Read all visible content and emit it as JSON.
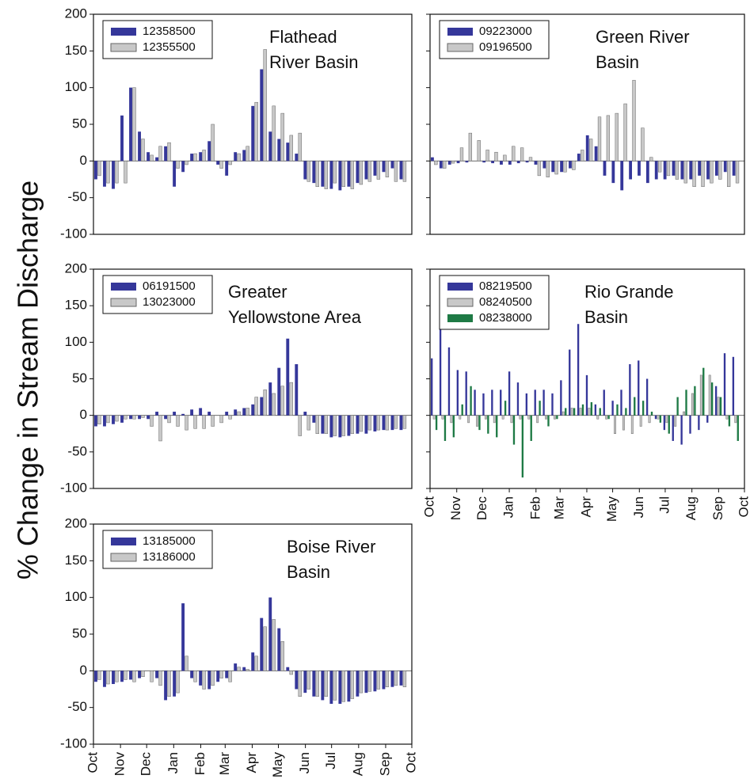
{
  "ylabel": "% Change in Stream Discharge",
  "chart_data": [
    {
      "type": "bar",
      "title": [
        "Flathead",
        "River Basin"
      ],
      "xlim": [
        0,
        365
      ],
      "ylim": [
        -100,
        200
      ],
      "yticks": [
        -100,
        -50,
        0,
        50,
        100,
        150,
        200
      ],
      "x": [
        5,
        15,
        25,
        35,
        45,
        55,
        65,
        75,
        85,
        95,
        105,
        115,
        125,
        135,
        145,
        155,
        165,
        175,
        185,
        195,
        205,
        215,
        225,
        235,
        245,
        255,
        265,
        275,
        285,
        295,
        305,
        315,
        325,
        335,
        345,
        355
      ],
      "series": [
        {
          "name": "12358500",
          "color": "#35379a",
          "values": [
            -25,
            -35,
            -38,
            62,
            100,
            40,
            12,
            5,
            20,
            -35,
            -15,
            10,
            12,
            27,
            -5,
            -20,
            12,
            15,
            75,
            125,
            40,
            30,
            25,
            10,
            -25,
            -30,
            -35,
            -38,
            -40,
            -35,
            -30,
            -25,
            -20,
            -15,
            -10,
            -25
          ]
        },
        {
          "name": "12355500",
          "color": "#c8c8c8",
          "values": [
            -20,
            -30,
            -30,
            -30,
            100,
            30,
            8,
            20,
            25,
            -10,
            -5,
            10,
            15,
            50,
            -10,
            -5,
            10,
            20,
            80,
            152,
            75,
            65,
            35,
            38,
            -28,
            -35,
            -38,
            -30,
            -35,
            -38,
            -32,
            -28,
            -25,
            -22,
            -28,
            -28
          ]
        }
      ]
    },
    {
      "type": "bar",
      "title": [
        "Green River",
        "Basin"
      ],
      "xlim": [
        0,
        365
      ],
      "ylim": [
        -100,
        200
      ],
      "yticks": [
        -100,
        -50,
        0,
        50,
        100,
        150,
        200
      ],
      "x": [
        5,
        15,
        25,
        35,
        45,
        55,
        65,
        75,
        85,
        95,
        105,
        115,
        125,
        135,
        145,
        155,
        165,
        175,
        185,
        195,
        205,
        215,
        225,
        235,
        245,
        255,
        265,
        275,
        285,
        295,
        305,
        315,
        325,
        335,
        345,
        355
      ],
      "series": [
        {
          "name": "09223000",
          "color": "#35379a",
          "values": [
            5,
            -10,
            -5,
            -3,
            -2,
            0,
            -2,
            -3,
            -5,
            -5,
            -3,
            -2,
            -5,
            -10,
            -15,
            -15,
            -10,
            10,
            35,
            20,
            -20,
            -30,
            -40,
            -25,
            -20,
            -30,
            -25,
            -25,
            -20,
            -25,
            -25,
            -20,
            -25,
            -20,
            -15,
            -20
          ]
        },
        {
          "name": "09196500",
          "color": "#c8c8c8",
          "values": [
            -5,
            -10,
            -3,
            18,
            38,
            28,
            15,
            12,
            8,
            20,
            18,
            5,
            -20,
            -22,
            -18,
            -15,
            -12,
            15,
            30,
            60,
            62,
            65,
            78,
            110,
            45,
            5,
            -15,
            -20,
            -25,
            -30,
            -35,
            -35,
            -30,
            -25,
            -35,
            -30
          ]
        }
      ]
    },
    {
      "type": "bar",
      "title": [
        "Greater",
        "Yellowstone Area"
      ],
      "xlim": [
        0,
        365
      ],
      "ylim": [
        -100,
        200
      ],
      "yticks": [
        -100,
        -50,
        0,
        50,
        100,
        150,
        200
      ],
      "x": [
        5,
        15,
        25,
        35,
        45,
        55,
        65,
        75,
        85,
        95,
        105,
        115,
        125,
        135,
        145,
        155,
        165,
        175,
        185,
        195,
        205,
        215,
        225,
        235,
        245,
        255,
        265,
        275,
        285,
        295,
        305,
        315,
        325,
        335,
        345,
        355
      ],
      "series": [
        {
          "name": "06191500",
          "color": "#35379a",
          "values": [
            -15,
            -15,
            -12,
            -10,
            -5,
            -5,
            -5,
            5,
            -5,
            5,
            2,
            8,
            10,
            5,
            0,
            5,
            8,
            10,
            15,
            25,
            45,
            65,
            105,
            70,
            5,
            -10,
            -25,
            -30,
            -30,
            -28,
            -25,
            -25,
            -22,
            -20,
            -20,
            -20
          ]
        },
        {
          "name": "13023000",
          "color": "#c8c8c8",
          "values": [
            -12,
            -10,
            -8,
            -5,
            -5,
            -3,
            -15,
            -35,
            -10,
            -15,
            -20,
            -18,
            -18,
            -15,
            -10,
            -5,
            5,
            10,
            25,
            35,
            30,
            40,
            45,
            -28,
            -20,
            -25,
            -25,
            -28,
            -28,
            -25,
            -22,
            -20,
            -20,
            -20,
            -18,
            -18
          ]
        }
      ]
    },
    {
      "type": "bar",
      "title": [
        "Rio Grande",
        "Basin"
      ],
      "xlim": [
        0,
        365
      ],
      "ylim": [
        -100,
        200
      ],
      "yticks": [
        -100,
        -50,
        0,
        50,
        100,
        150,
        200
      ],
      "xticks": [
        {
          "value": 0,
          "label": "Oct"
        },
        {
          "value": 31,
          "label": "Nov"
        },
        {
          "value": 61,
          "label": "Dec"
        },
        {
          "value": 92,
          "label": "Jan"
        },
        {
          "value": 123,
          "label": "Feb"
        },
        {
          "value": 151,
          "label": "Mar"
        },
        {
          "value": 182,
          "label": "Apr"
        },
        {
          "value": 212,
          "label": "May"
        },
        {
          "value": 243,
          "label": "Jun"
        },
        {
          "value": 273,
          "label": "Jul"
        },
        {
          "value": 304,
          "label": "Aug"
        },
        {
          "value": 335,
          "label": "Sep"
        },
        {
          "value": 365,
          "label": "Oct"
        }
      ],
      "x": [
        5,
        15,
        25,
        35,
        45,
        55,
        65,
        75,
        85,
        95,
        105,
        115,
        125,
        135,
        145,
        155,
        165,
        175,
        185,
        195,
        205,
        215,
        225,
        235,
        245,
        255,
        265,
        275,
        285,
        295,
        305,
        315,
        325,
        335,
        345,
        355
      ],
      "series": [
        {
          "name": "08219500",
          "color": "#35379a",
          "values": [
            78,
            155,
            93,
            62,
            60,
            35,
            30,
            35,
            35,
            60,
            45,
            30,
            35,
            35,
            30,
            48,
            90,
            125,
            55,
            15,
            35,
            20,
            35,
            70,
            75,
            50,
            -5,
            -20,
            -35,
            -40,
            -25,
            -20,
            -10,
            40,
            85,
            80
          ]
        },
        {
          "name": "08240500",
          "color": "#c8c8c8",
          "values": [
            -5,
            -5,
            -10,
            -5,
            -10,
            -15,
            -5,
            -10,
            -5,
            -10,
            -5,
            -5,
            -10,
            -5,
            -5,
            5,
            10,
            10,
            10,
            -5,
            -5,
            -25,
            -20,
            -25,
            -15,
            -10,
            -5,
            -10,
            -15,
            5,
            30,
            55,
            55,
            25,
            -5,
            -10
          ]
        },
        {
          "name": "08238000",
          "color": "#1e7a45",
          "values": [
            -20,
            -35,
            -30,
            15,
            40,
            -20,
            -25,
            -30,
            20,
            -40,
            -85,
            -35,
            20,
            -15,
            -5,
            10,
            10,
            15,
            18,
            10,
            -5,
            15,
            10,
            25,
            20,
            5,
            -10,
            -25,
            25,
            35,
            40,
            65,
            45,
            25,
            -15,
            -35
          ]
        }
      ]
    },
    {
      "type": "bar",
      "title": [
        "Boise River",
        "Basin"
      ],
      "xlim": [
        0,
        365
      ],
      "ylim": [
        -100,
        200
      ],
      "yticks": [
        -100,
        -50,
        0,
        50,
        100,
        150,
        200
      ],
      "xticks": [
        {
          "value": 0,
          "label": "Oct"
        },
        {
          "value": 31,
          "label": "Nov"
        },
        {
          "value": 61,
          "label": "Dec"
        },
        {
          "value": 92,
          "label": "Jan"
        },
        {
          "value": 123,
          "label": "Feb"
        },
        {
          "value": 151,
          "label": "Mar"
        },
        {
          "value": 182,
          "label": "Apr"
        },
        {
          "value": 212,
          "label": "May"
        },
        {
          "value": 243,
          "label": "Jun"
        },
        {
          "value": 273,
          "label": "Jul"
        },
        {
          "value": 304,
          "label": "Aug"
        },
        {
          "value": 335,
          "label": "Sep"
        },
        {
          "value": 365,
          "label": "Oct"
        }
      ],
      "x": [
        5,
        15,
        25,
        35,
        45,
        55,
        65,
        75,
        85,
        95,
        105,
        115,
        125,
        135,
        145,
        155,
        165,
        175,
        185,
        195,
        205,
        215,
        225,
        235,
        245,
        255,
        265,
        275,
        285,
        295,
        305,
        315,
        325,
        335,
        345,
        355
      ],
      "series": [
        {
          "name": "13185000",
          "color": "#35379a",
          "values": [
            -15,
            -22,
            -18,
            -15,
            -12,
            -10,
            0,
            -10,
            -40,
            -35,
            92,
            -10,
            -20,
            -25,
            -15,
            -10,
            10,
            5,
            25,
            72,
            100,
            58,
            5,
            -25,
            -30,
            -35,
            -40,
            -45,
            -45,
            -42,
            -35,
            -30,
            -28,
            -25,
            -22,
            -20
          ]
        },
        {
          "name": "13186000",
          "color": "#c8c8c8",
          "values": [
            -12,
            -18,
            -15,
            -12,
            -15,
            -8,
            -15,
            -20,
            -35,
            -30,
            20,
            -15,
            -25,
            -20,
            -10,
            -15,
            5,
            2,
            20,
            60,
            70,
            40,
            -5,
            -35,
            -25,
            -35,
            -35,
            -40,
            -42,
            -38,
            -30,
            -28,
            -25,
            -22,
            -20,
            -22
          ]
        }
      ]
    }
  ]
}
